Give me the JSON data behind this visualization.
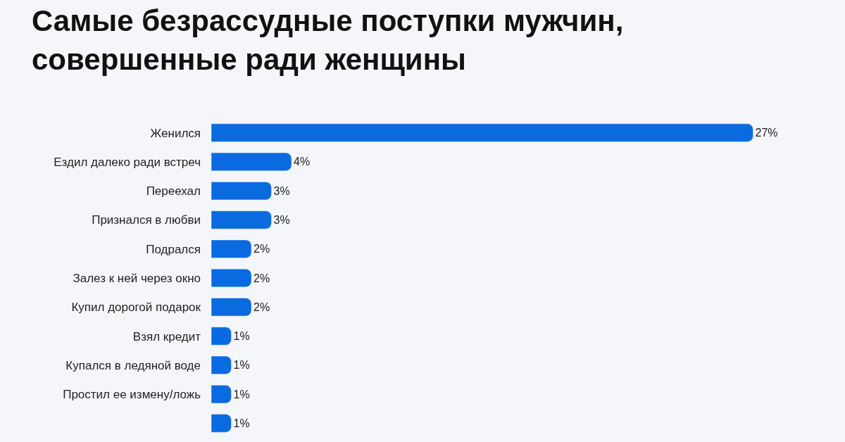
{
  "chart_data": {
    "type": "bar",
    "orientation": "horizontal",
    "title": "Самые безрассудные поступки мужчин,\nсовершенные ради женщины",
    "categories": [
      "Женился",
      "Ездил далеко ради встреч",
      "Переехал",
      "Признался в любви",
      "Подрался",
      "Залез к ней через окно",
      "Купил дорогой подарок",
      "Взял кредит",
      "Купался в ледяной воде",
      "Простил ее измену/ложь",
      null
    ],
    "values": [
      27,
      4,
      3,
      3,
      2,
      2,
      2,
      1,
      1,
      1,
      1
    ],
    "value_labels": [
      "27%",
      "4%",
      "3%",
      "3%",
      "2%",
      "2%",
      "2%",
      "1%",
      "1%",
      "1%",
      "1%"
    ],
    "color": "#0a6be1",
    "grid": false,
    "legend": false,
    "tick_labels": "y"
  }
}
